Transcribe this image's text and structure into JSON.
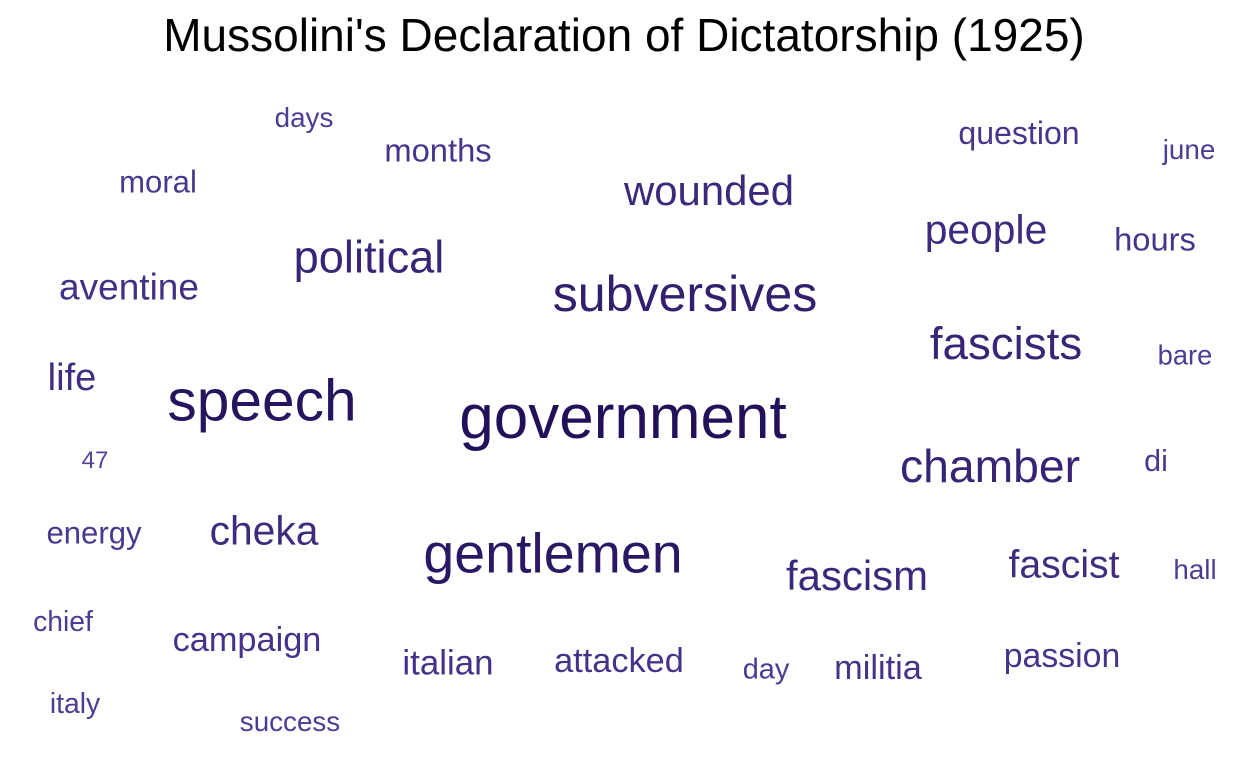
{
  "chart_data": {
    "type": "wordcloud",
    "title": "Mussolini's Declaration of Dictatorship (1925)",
    "colors": {
      "strongest": "#23105a",
      "weakest": "#53409a"
    },
    "words": [
      {
        "text": "government",
        "weight": 10
      },
      {
        "text": "speech",
        "weight": 9.4
      },
      {
        "text": "gentlemen",
        "weight": 8.8
      },
      {
        "text": "subversives",
        "weight": 7.8
      },
      {
        "text": "chamber",
        "weight": 7.1
      },
      {
        "text": "fascists",
        "weight": 7.0
      },
      {
        "text": "political",
        "weight": 6.9
      },
      {
        "text": "wounded",
        "weight": 6.3
      },
      {
        "text": "fascism",
        "weight": 6.3
      },
      {
        "text": "cheka",
        "weight": 6.1
      },
      {
        "text": "people",
        "weight": 6.1
      },
      {
        "text": "fascist",
        "weight": 5.8
      },
      {
        "text": "life",
        "weight": 5.6
      },
      {
        "text": "aventine",
        "weight": 5.4
      },
      {
        "text": "italian",
        "weight": 5.0
      },
      {
        "text": "campaign",
        "weight": 4.9
      },
      {
        "text": "attacked",
        "weight": 4.9
      },
      {
        "text": "militia",
        "weight": 4.9
      },
      {
        "text": "passion",
        "weight": 4.8
      },
      {
        "text": "months",
        "weight": 4.6
      },
      {
        "text": "hours",
        "weight": 4.6
      },
      {
        "text": "question",
        "weight": 4.5
      },
      {
        "text": "energy",
        "weight": 4.3
      },
      {
        "text": "moral",
        "weight": 4.3
      },
      {
        "text": "di",
        "weight": 4.2
      },
      {
        "text": "day",
        "weight": 3.9
      },
      {
        "text": "chief",
        "weight": 3.8
      },
      {
        "text": "italy",
        "weight": 3.8
      },
      {
        "text": "success",
        "weight": 3.7
      },
      {
        "text": "hall",
        "weight": 3.7
      },
      {
        "text": "june",
        "weight": 3.7
      },
      {
        "text": "days",
        "weight": 3.7
      },
      {
        "text": "bare",
        "weight": 3.6
      },
      {
        "text": "47",
        "weight": 3.0
      }
    ]
  }
}
